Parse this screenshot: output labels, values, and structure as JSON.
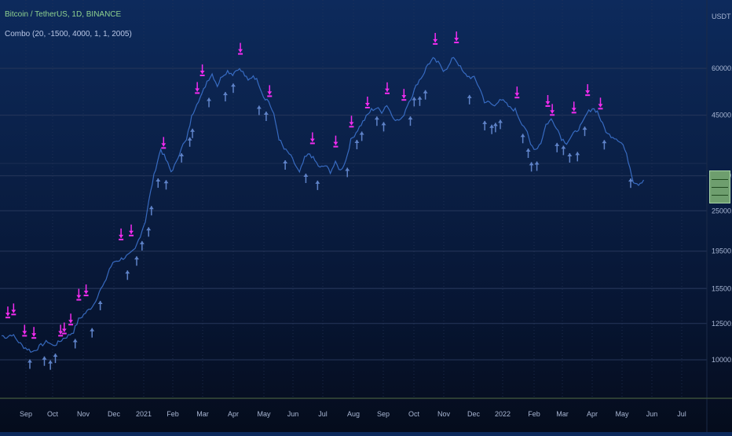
{
  "header": {
    "symbol_line": "Bitcoin / TetherUS, 1D, BINANCE",
    "indicator_line": "Combo (20, -1500, 4000, 1, 1, 2005)"
  },
  "colors": {
    "price_line": "#3f78d6",
    "buy_arrow": "#5f83c9",
    "sell_arrow": "#f22cf0",
    "grid": "#26365a",
    "axis_text": "#a8b6d3"
  },
  "chart_data": {
    "type": "line",
    "title": "Bitcoin / TetherUS, 1D, BINANCE",
    "xlabel": "",
    "ylabel": "",
    "y_unit_label": "USDT",
    "y_scale": "log",
    "ylim": [
      7200,
      80000
    ],
    "grid": true,
    "x_ticks": [
      "Sep",
      "Oct",
      "Nov",
      "Dec",
      "2021",
      "Feb",
      "Mar",
      "Apr",
      "May",
      "Jun",
      "Jul",
      "Aug",
      "Sep",
      "Oct",
      "Nov",
      "Dec",
      "2022",
      "Feb",
      "Mar",
      "Apr",
      "May",
      "Jun",
      "Jul"
    ],
    "y_ticks": [
      {
        "value": 10000,
        "label": "10000.00"
      },
      {
        "value": 12500,
        "label": "12500.00"
      },
      {
        "value": 15500,
        "label": "15500.00"
      },
      {
        "value": 19500,
        "label": "19500.00"
      },
      {
        "value": 25000,
        "label": "25000.00"
      },
      {
        "value": 31000,
        "label": "31000.00"
      },
      {
        "value": 45000,
        "label": "45000.00"
      },
      {
        "value": 60000,
        "label": "60000.00"
      }
    ],
    "series": [
      {
        "values_approx": [
          [
            0,
            11600
          ],
          [
            3,
            11500
          ],
          [
            6,
            11700
          ],
          [
            9,
            11300
          ],
          [
            12,
            10900
          ],
          [
            15,
            10700
          ],
          [
            18,
            10500
          ],
          [
            21,
            10750
          ],
          [
            24,
            11000
          ],
          [
            27,
            11200
          ],
          [
            30,
            10900
          ],
          [
            33,
            11100
          ],
          [
            36,
            11400
          ],
          [
            39,
            11600
          ],
          [
            42,
            11900
          ],
          [
            45,
            12800
          ],
          [
            48,
            13200
          ],
          [
            51,
            13600
          ],
          [
            54,
            14100
          ],
          [
            57,
            15200
          ],
          [
            60,
            15900
          ],
          [
            63,
            17500
          ],
          [
            66,
            18300
          ],
          [
            69,
            18500
          ],
          [
            72,
            18800
          ],
          [
            75,
            19100
          ],
          [
            78,
            19700
          ],
          [
            81,
            21500
          ],
          [
            84,
            23500
          ],
          [
            87,
            28000
          ],
          [
            90,
            32500
          ],
          [
            93,
            36500
          ],
          [
            96,
            34200
          ],
          [
            99,
            31800
          ],
          [
            102,
            33500
          ],
          [
            105,
            37000
          ],
          [
            108,
            38500
          ],
          [
            111,
            44500
          ],
          [
            114,
            48500
          ],
          [
            117,
            51000
          ],
          [
            120,
            55500
          ],
          [
            123,
            58000
          ],
          [
            126,
            54000
          ],
          [
            129,
            57500
          ],
          [
            132,
            59000
          ],
          [
            135,
            58000
          ],
          [
            138,
            60000
          ],
          [
            141,
            58500
          ],
          [
            144,
            55500
          ],
          [
            147,
            57500
          ],
          [
            150,
            55000
          ],
          [
            153,
            50500
          ],
          [
            156,
            49000
          ],
          [
            159,
            45000
          ],
          [
            162,
            39000
          ],
          [
            165,
            36500
          ],
          [
            168,
            35500
          ],
          [
            171,
            33500
          ],
          [
            174,
            31500
          ],
          [
            177,
            34500
          ],
          [
            180,
            35500
          ],
          [
            183,
            34000
          ],
          [
            186,
            32500
          ],
          [
            189,
            33000
          ],
          [
            192,
            31800
          ],
          [
            195,
            33500
          ],
          [
            198,
            32000
          ],
          [
            201,
            34000
          ],
          [
            204,
            38500
          ],
          [
            207,
            40500
          ],
          [
            210,
            42500
          ],
          [
            213,
            44500
          ],
          [
            216,
            46500
          ],
          [
            219,
            47000
          ],
          [
            222,
            46000
          ],
          [
            225,
            48000
          ],
          [
            228,
            45000
          ],
          [
            231,
            43500
          ],
          [
            234,
            44000
          ],
          [
            237,
            48000
          ],
          [
            240,
            51000
          ],
          [
            243,
            55000
          ],
          [
            246,
            57500
          ],
          [
            249,
            61500
          ],
          [
            252,
            63500
          ],
          [
            255,
            62000
          ],
          [
            258,
            59500
          ],
          [
            261,
            60500
          ],
          [
            264,
            64500
          ],
          [
            267,
            61500
          ],
          [
            270,
            58000
          ],
          [
            273,
            57000
          ],
          [
            276,
            56500
          ],
          [
            279,
            53500
          ],
          [
            282,
            49000
          ],
          [
            285,
            48500
          ],
          [
            288,
            47500
          ],
          [
            291,
            50000
          ],
          [
            294,
            48500
          ],
          [
            297,
            47000
          ],
          [
            300,
            46500
          ],
          [
            303,
            43500
          ],
          [
            306,
            41500
          ],
          [
            309,
            37500
          ],
          [
            312,
            36500
          ],
          [
            315,
            38000
          ],
          [
            318,
            42500
          ],
          [
            321,
            43800
          ],
          [
            324,
            42000
          ],
          [
            327,
            39000
          ],
          [
            330,
            38000
          ],
          [
            333,
            39500
          ],
          [
            336,
            41000
          ],
          [
            339,
            42500
          ],
          [
            342,
            45500
          ],
          [
            345,
            47000
          ],
          [
            348,
            46000
          ],
          [
            351,
            42500
          ],
          [
            354,
            40000
          ],
          [
            357,
            39500
          ],
          [
            360,
            38800
          ],
          [
            363,
            37500
          ],
          [
            366,
            34000
          ],
          [
            369,
            30000
          ],
          [
            372,
            29500
          ],
          [
            375,
            30200
          ]
        ]
      }
    ],
    "signals": {
      "buy_count_approx": 118,
      "sell_count_approx": 110
    },
    "last_price_box": "29500.00"
  },
  "price_box_lines": [
    "",
    "",
    ""
  ]
}
